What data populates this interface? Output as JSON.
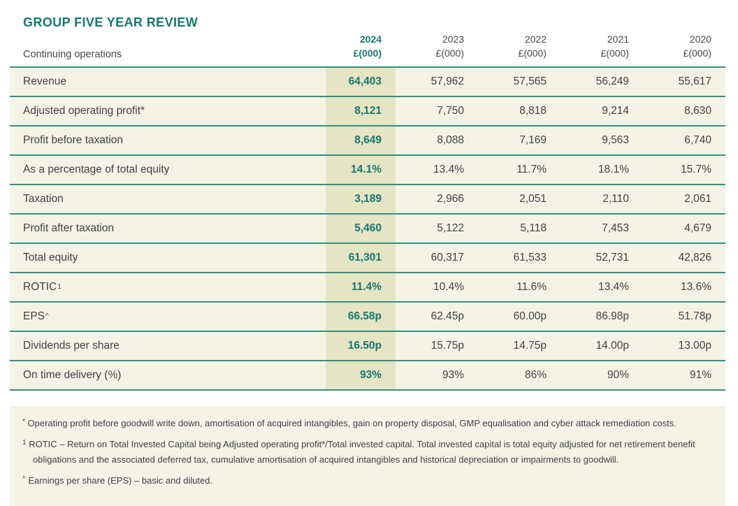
{
  "title": "GROUP FIVE YEAR REVIEW",
  "table": {
    "row_header_label": "Continuing operations",
    "columns": [
      {
        "year": "2024",
        "unit": "£(000)",
        "current": true
      },
      {
        "year": "2023",
        "unit": "£(000)",
        "current": false
      },
      {
        "year": "2022",
        "unit": "£(000)",
        "current": false
      },
      {
        "year": "2021",
        "unit": "£(000)",
        "current": false
      },
      {
        "year": "2020",
        "unit": "£(000)",
        "current": false
      }
    ],
    "rows": [
      {
        "label": "Revenue",
        "label_sup": "",
        "values": [
          "64,403",
          "57,962",
          "57,565",
          "56,249",
          "55,617"
        ]
      },
      {
        "label": "Adjusted operating profit*",
        "label_sup": "",
        "values": [
          "8,121",
          "7,750",
          "8,818",
          "9,214",
          "8,630"
        ]
      },
      {
        "label": "Profit before taxation",
        "label_sup": "",
        "values": [
          "8,649",
          "8,088",
          "7,169",
          "9,563",
          "6,740"
        ]
      },
      {
        "label": "As a percentage of total equity",
        "label_sup": "",
        "values": [
          "14.1%",
          "13.4%",
          "11.7%",
          "18.1%",
          "15.7%"
        ]
      },
      {
        "label": "Taxation",
        "label_sup": "",
        "values": [
          "3,189",
          "2,966",
          "2,051",
          "2,110",
          "2,061"
        ]
      },
      {
        "label": "Profit after taxation",
        "label_sup": "",
        "values": [
          "5,460",
          "5,122",
          "5,118",
          "7,453",
          "4,679"
        ]
      },
      {
        "label": "Total equity",
        "label_sup": "",
        "values": [
          "61,301",
          "60,317",
          "61,533",
          "52,731",
          "42,826"
        ]
      },
      {
        "label": "ROTIC",
        "label_sup": "1",
        "values": [
          "11.4%",
          "10.4%",
          "11.6%",
          "13.4%",
          "13.6%"
        ]
      },
      {
        "label": "EPS",
        "label_sup": "^",
        "values": [
          "66.58p",
          "62.45p",
          "60.00p",
          "86.98p",
          "51.78p"
        ]
      },
      {
        "label": "Dividends per share",
        "label_sup": "",
        "values": [
          "16.50p",
          "15.75p",
          "14.75p",
          "14.00p",
          "13.00p"
        ]
      },
      {
        "label": "On time delivery (%)",
        "label_sup": "",
        "values": [
          "93%",
          "93%",
          "86%",
          "90%",
          "91%"
        ]
      }
    ]
  },
  "footnotes": [
    {
      "marker": "*",
      "text": "Operating profit before goodwill write down, amortisation of acquired intangibles, gain on property disposal, GMP equalisation and cyber attack remediation costs."
    },
    {
      "marker": "1",
      "text": "ROTIC – Return on Total Invested Capital being Adjusted operating profit*/Total invested capital. Total invested capital is total equity adjusted for net retirement benefit obligations and the associated deferred tax, cumulative amortisation of acquired intangibles and historical depreciation or impairments to goodwill."
    },
    {
      "marker": "^",
      "text": "Earnings per share (EPS) – basic and diluted."
    }
  ],
  "colors": {
    "accent_teal": "#15796d",
    "divider_teal": "#319180",
    "row_background": "#f5f4e4",
    "highlight_column_background": "#e5e4c5",
    "body_text": "#3f4044"
  }
}
